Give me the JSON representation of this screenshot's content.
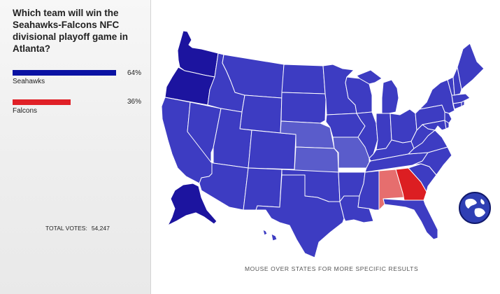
{
  "poll": {
    "question": "Which team will win the Seahawks-Falcons NFC divisional playoff game in Atlanta?",
    "options": [
      {
        "label": "Seahawks",
        "percent": "64%",
        "value": 64,
        "color": "#0a12a3"
      },
      {
        "label": "Falcons",
        "percent": "36%",
        "value": 36,
        "color": "#e02027"
      }
    ],
    "total_label": "TOTAL VOTES:",
    "total_value": "54,247"
  },
  "map": {
    "hint": "MOUSE OVER STATES FOR MORE SPECIFIC RESULTS",
    "colors": {
      "strong_seahawks": "#1c149f",
      "seahawks": "#3d3cc2",
      "lean_seahawks": "#5a5ccb",
      "lean_falcons": "#e66e6e",
      "falcons": "#dc1e22",
      "border": "#ffffff"
    },
    "globe_icon": "globe-icon"
  }
}
